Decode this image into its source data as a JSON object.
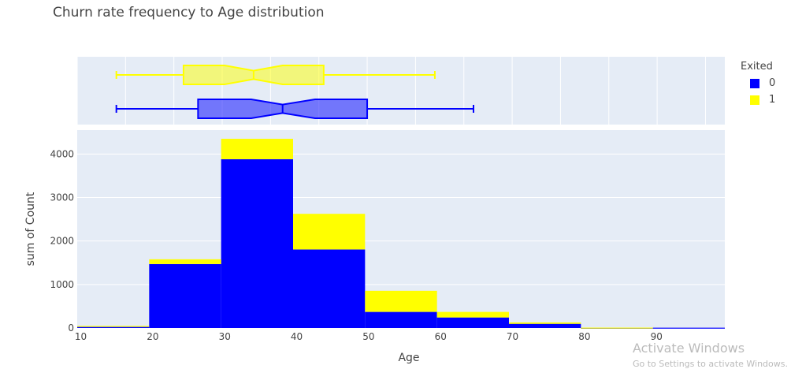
{
  "chart_data": {
    "type": "bar",
    "title": "Churn rate frequency to Age distribution",
    "xlabel": "Age",
    "ylabel": "sum of Count",
    "barmode": "stack",
    "bin_edges": [
      9.5,
      19.5,
      29.5,
      39.5,
      49.5,
      59.5,
      69.5,
      79.5,
      89.5,
      99.5
    ],
    "xlim": [
      9.5,
      99.5
    ],
    "ylim": [
      0,
      4550
    ],
    "xticks": [
      10,
      20,
      30,
      40,
      50,
      60,
      70,
      80,
      90
    ],
    "yticks": [
      0,
      1000,
      2000,
      3000,
      4000
    ],
    "grid": true,
    "legend": {
      "title": "Exited",
      "position": "top-right"
    },
    "series": [
      {
        "name": "0",
        "color": "#0000ff",
        "values": [
          25,
          1470,
          3880,
          1805,
          370,
          242,
          96,
          5,
          7
        ]
      },
      {
        "name": "1",
        "color": "#ffff00",
        "values": [
          22,
          110,
          470,
          820,
          485,
          128,
          31,
          4,
          0
        ]
      }
    ],
    "marginal": {
      "type": "box",
      "notched": true,
      "boxes": [
        {
          "name": "1",
          "color": "#ffff00",
          "min": 0.81,
          "q1": 2.2,
          "notch_low": 3.05,
          "median": 3.65,
          "notch_high": 4.25,
          "q3": 5.1,
          "max": 7.4
        },
        {
          "name": "0",
          "color": "#0000ff",
          "min": 0.81,
          "q1": 2.5,
          "notch_low": 3.6,
          "median": 4.25,
          "notch_high": 4.92,
          "q3": 6.0,
          "max": 8.2
        }
      ],
      "range": [
        0,
        13.4
      ]
    }
  },
  "watermark": {
    "line1": "Activate Windows",
    "line2": "Go to Settings to activate Windows."
  }
}
